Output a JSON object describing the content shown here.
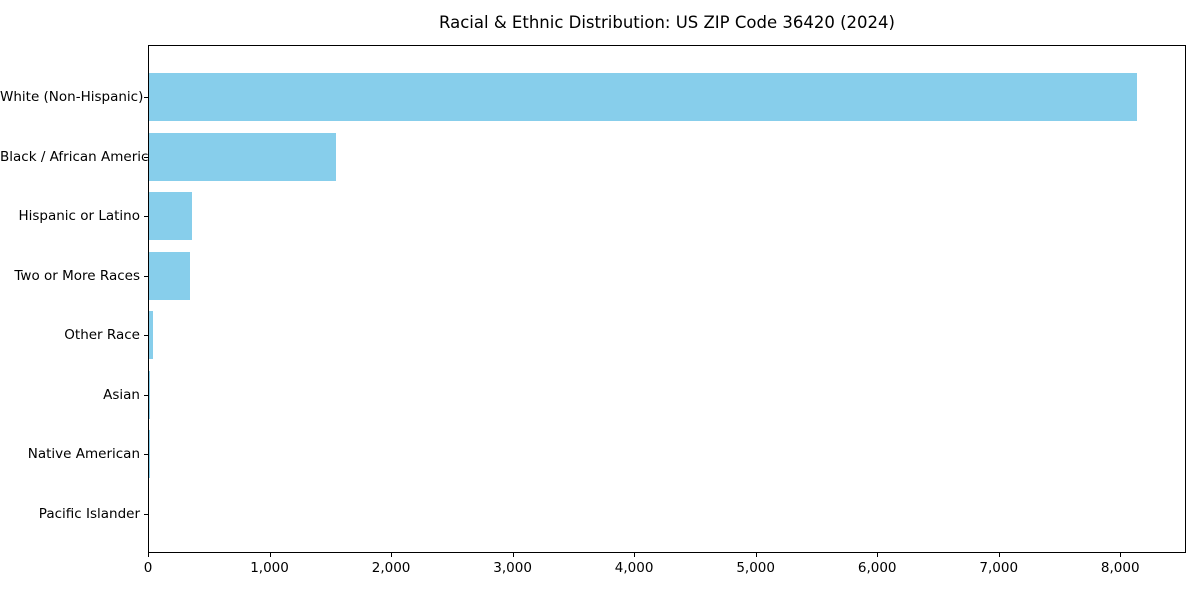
{
  "chart_data": {
    "type": "bar",
    "orientation": "horizontal",
    "title": "Racial & Ethnic Distribution: US ZIP Code 36420 (2024)",
    "categories": [
      "White (Non-Hispanic)",
      "Black / African American",
      "Hispanic or Latino",
      "Two or More Races",
      "Other Race",
      "Asian",
      "Native American",
      "Pacific Islander"
    ],
    "values": [
      8134,
      1549,
      366,
      343,
      45,
      10,
      5,
      0
    ],
    "bar_color": "#87CEEB",
    "axis_color": "#000000",
    "text_color": "#000000",
    "background_color": "#ffffff",
    "xlabel": "",
    "ylabel": "",
    "xlim": [
      0,
      8541
    ],
    "x_ticks": [
      0,
      1000,
      2000,
      3000,
      4000,
      5000,
      6000,
      7000,
      8000
    ],
    "x_tick_labels": [
      "0",
      "1,000",
      "2,000",
      "3,000",
      "4,000",
      "5,000",
      "6,000",
      "7,000",
      "8,000"
    ],
    "grid": false,
    "legend": null
  }
}
